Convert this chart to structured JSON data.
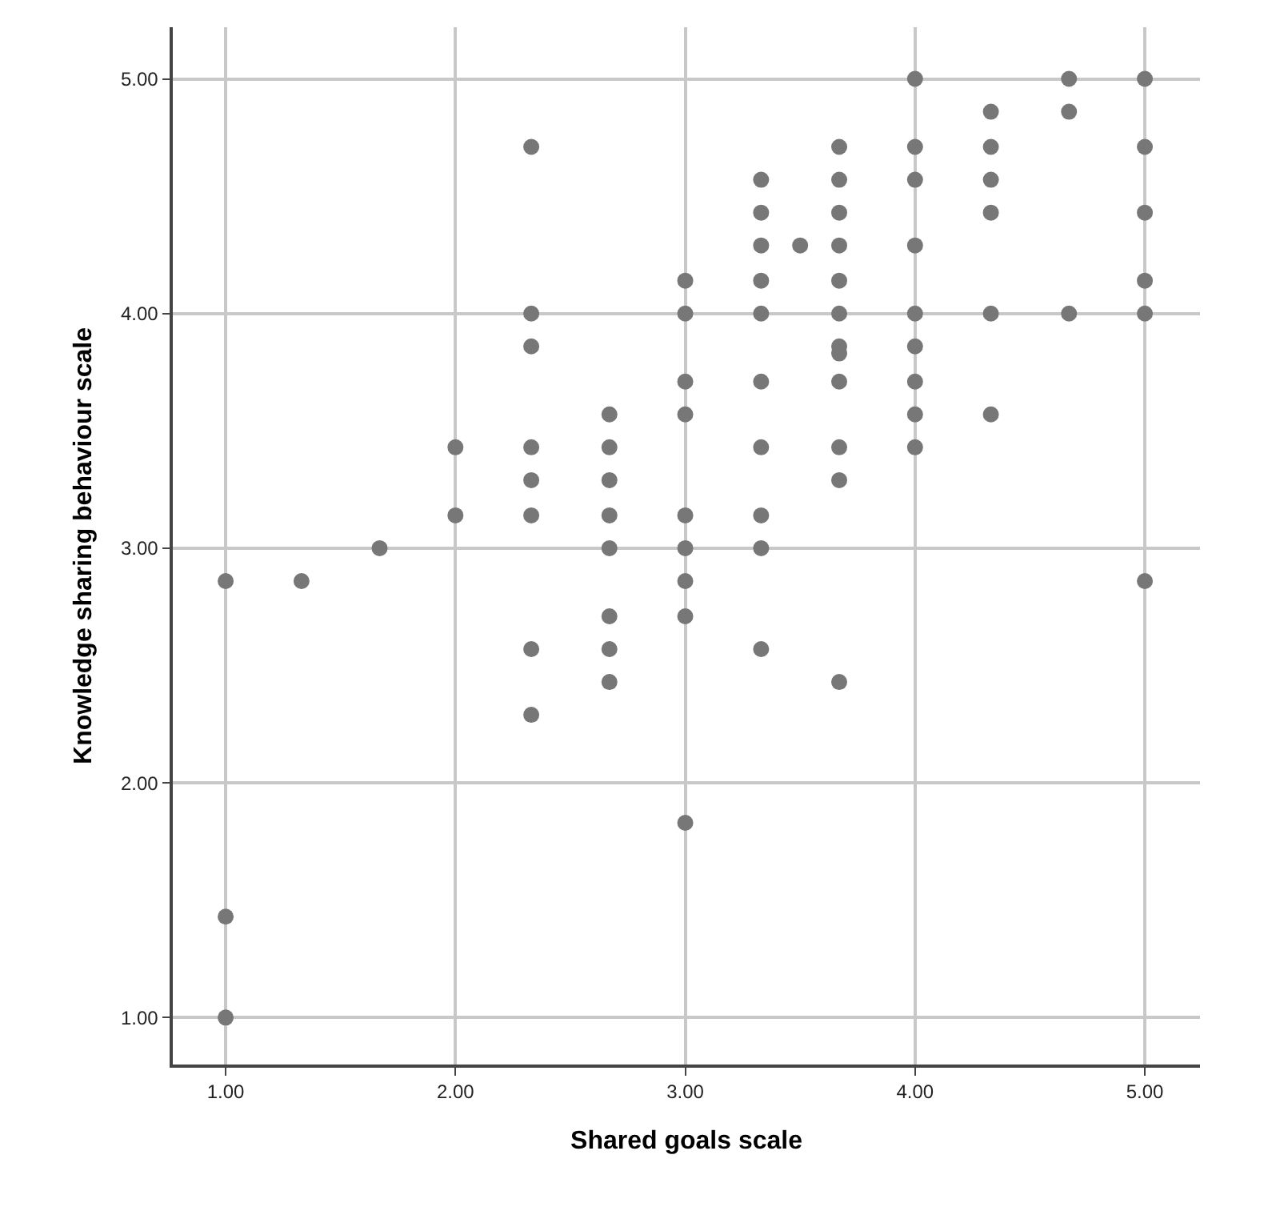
{
  "chart_data": {
    "type": "scatter",
    "xlabel": "Shared goals scale",
    "ylabel": "Knowledge sharing behaviour scale",
    "xlim": [
      0.77,
      5.24
    ],
    "ylim": [
      0.8,
      5.22
    ],
    "xticks": [
      {
        "value": 1,
        "label": "1.00"
      },
      {
        "value": 2,
        "label": "2.00"
      },
      {
        "value": 3,
        "label": "3.00"
      },
      {
        "value": 4,
        "label": "4.00"
      },
      {
        "value": 5,
        "label": "5.00"
      }
    ],
    "yticks": [
      {
        "value": 1,
        "label": "1.00"
      },
      {
        "value": 2,
        "label": "2.00"
      },
      {
        "value": 3,
        "label": "3.00"
      },
      {
        "value": 4,
        "label": "4.00"
      },
      {
        "value": 5,
        "label": "5.00"
      }
    ],
    "grid": true,
    "marker": "circle",
    "series": [
      {
        "color": "#777777",
        "x": [
          1,
          1,
          1,
          1.33,
          1.67,
          2,
          2,
          2.33,
          2.33,
          2.33,
          2.33,
          2.33,
          2.33,
          2.33,
          2.33,
          2.67,
          2.67,
          2.67,
          2.67,
          2.67,
          2.67,
          2.67,
          2.67,
          3,
          3,
          3,
          3,
          3,
          3,
          3,
          3,
          3,
          3.33,
          3.33,
          3.33,
          3.33,
          3.33,
          3.33,
          3.33,
          3.33,
          3.33,
          3.33,
          3.5,
          3.67,
          3.67,
          3.67,
          3.67,
          3.67,
          3.67,
          3.67,
          3.67,
          3.67,
          3.67,
          3.67,
          3.67,
          4,
          4,
          4,
          4,
          4,
          4,
          4,
          4,
          4,
          4.33,
          4.33,
          4.33,
          4.33,
          4.33,
          4.33,
          4.67,
          4.67,
          4.67,
          5,
          5,
          5,
          5,
          5,
          5
        ],
        "values": [
          2.86,
          1.43,
          1,
          2.86,
          3,
          3.43,
          3.14,
          4.71,
          4,
          3.86,
          3.43,
          3.29,
          3.14,
          2.57,
          2.29,
          3.57,
          3.43,
          3.29,
          3.14,
          3,
          2.71,
          2.57,
          2.43,
          4.14,
          4,
          3.71,
          3.57,
          3.14,
          3,
          2.86,
          2.71,
          1.83,
          4.57,
          4.43,
          4.29,
          4.14,
          4,
          3.71,
          3.43,
          3.14,
          3,
          2.57,
          4.29,
          4.71,
          4.57,
          4.43,
          4.29,
          4.14,
          4,
          3.86,
          3.83,
          3.71,
          3.43,
          3.29,
          2.43,
          5,
          4.71,
          4.57,
          4.29,
          4,
          3.86,
          3.71,
          3.57,
          3.43,
          4.86,
          4.71,
          4.57,
          4.43,
          4,
          3.57,
          5,
          4.86,
          4,
          5,
          4.71,
          4.43,
          4.14,
          4,
          2.86
        ]
      }
    ]
  }
}
